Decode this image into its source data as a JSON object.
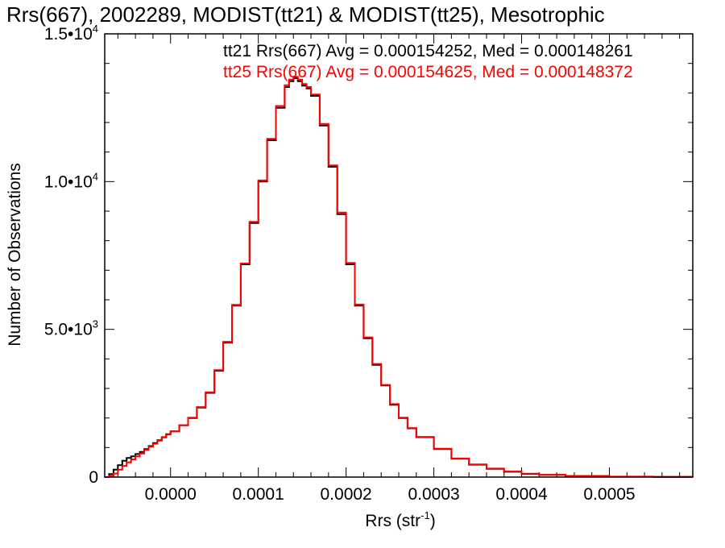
{
  "chart_data": {
    "type": "line",
    "title": "Rrs(667), 2002289, MODIST(tt21) & MODIST(tt25), Mesotrophic",
    "xlabel": "Rrs (str",
    "xlabel_sup": "-1",
    "xlabel_close": ")",
    "ylabel": "Number of Observations",
    "xlim": [
      -7.5e-05,
      0.000595
    ],
    "ylim": [
      0,
      15000
    ],
    "grid": false,
    "x_ticks": [
      {
        "value": 0.0,
        "label": "0.0000"
      },
      {
        "value": 0.0001,
        "label": "0.0001"
      },
      {
        "value": 0.0002,
        "label": "0.0002"
      },
      {
        "value": 0.0003,
        "label": "0.0003"
      },
      {
        "value": 0.0004,
        "label": "0.0004"
      },
      {
        "value": 0.0005,
        "label": "0.0005"
      }
    ],
    "y_ticks": [
      {
        "value": 0,
        "base": "0",
        "exp": ""
      },
      {
        "value": 5000,
        "base": "5.0•10",
        "exp": "3"
      },
      {
        "value": 10000,
        "base": "1.0•10",
        "exp": "4"
      },
      {
        "value": 15000,
        "base": "1.5•10",
        "exp": "4"
      }
    ],
    "stats": [
      {
        "text": "tt21 Rrs(667) Avg = 0.000154252, Med = 0.000148261",
        "color": "#000000"
      },
      {
        "text": "tt25 Rrs(667) Avg = 0.000154625, Med = 0.000148372",
        "color": "#ff0000"
      }
    ],
    "series": [
      {
        "name": "tt21",
        "color": "#000000",
        "x": [
          -7.5e-05,
          -7e-05,
          -6.5e-05,
          -6e-05,
          -5.5e-05,
          -5e-05,
          -4.5e-05,
          -4e-05,
          -3.5e-05,
          -3e-05,
          -2.5e-05,
          -2e-05,
          -1.5e-05,
          -1e-05,
          -5e-06,
          0.0,
          1e-05,
          2e-05,
          3e-05,
          4e-05,
          5e-05,
          6e-05,
          7e-05,
          8e-05,
          9e-05,
          0.0001,
          0.00011,
          0.00012,
          0.00013,
          0.000135,
          0.00014,
          0.000145,
          0.00015,
          0.000155,
          0.00016,
          0.00017,
          0.00018,
          0.00019,
          0.0002,
          0.00021,
          0.00022,
          0.00023,
          0.00024,
          0.00025,
          0.00026,
          0.00027,
          0.00028,
          0.0003,
          0.00032,
          0.00034,
          0.00036,
          0.00038,
          0.0004,
          0.00042,
          0.00045,
          0.0005,
          0.00055,
          0.000595
        ],
        "y": [
          0,
          100,
          250,
          400,
          550,
          650,
          700,
          780,
          850,
          950,
          1050,
          1150,
          1250,
          1350,
          1450,
          1550,
          1750,
          2000,
          2350,
          2850,
          3600,
          4550,
          5800,
          7200,
          8600,
          10000,
          11400,
          12500,
          13200,
          13400,
          13500,
          13400,
          13250,
          13150,
          12900,
          11900,
          10500,
          8900,
          7200,
          5800,
          4700,
          3800,
          3100,
          2450,
          2000,
          1650,
          1350,
          950,
          620,
          420,
          280,
          180,
          110,
          75,
          40,
          15,
          5,
          2
        ]
      },
      {
        "name": "tt25",
        "color": "#ff0000",
        "x": [
          -7.5e-05,
          -7e-05,
          -6.5e-05,
          -6e-05,
          -5.5e-05,
          -5e-05,
          -4.5e-05,
          -4e-05,
          -3.5e-05,
          -3e-05,
          -2.5e-05,
          -2e-05,
          -1.5e-05,
          -1e-05,
          -5e-06,
          0.0,
          1e-05,
          2e-05,
          3e-05,
          4e-05,
          5e-05,
          6e-05,
          7e-05,
          8e-05,
          9e-05,
          0.0001,
          0.00011,
          0.00012,
          0.00013,
          0.000135,
          0.00014,
          0.000145,
          0.00015,
          0.000155,
          0.00016,
          0.00017,
          0.00018,
          0.00019,
          0.0002,
          0.00021,
          0.00022,
          0.00023,
          0.00024,
          0.00025,
          0.00026,
          0.00027,
          0.00028,
          0.0003,
          0.00032,
          0.00034,
          0.00036,
          0.00038,
          0.0004,
          0.00042,
          0.00045,
          0.0005,
          0.00055,
          0.000595
        ],
        "y": [
          0,
          40,
          120,
          250,
          380,
          500,
          600,
          700,
          800,
          920,
          1030,
          1130,
          1230,
          1340,
          1440,
          1550,
          1760,
          2010,
          2370,
          2870,
          3620,
          4580,
          5830,
          7230,
          8640,
          10040,
          11450,
          12560,
          13260,
          13450,
          13550,
          13450,
          13300,
          13200,
          12950,
          11950,
          10550,
          8950,
          7250,
          5840,
          4730,
          3830,
          3120,
          2470,
          2010,
          1660,
          1360,
          960,
          630,
          430,
          290,
          190,
          115,
          78,
          42,
          16,
          6,
          2
        ]
      }
    ]
  }
}
